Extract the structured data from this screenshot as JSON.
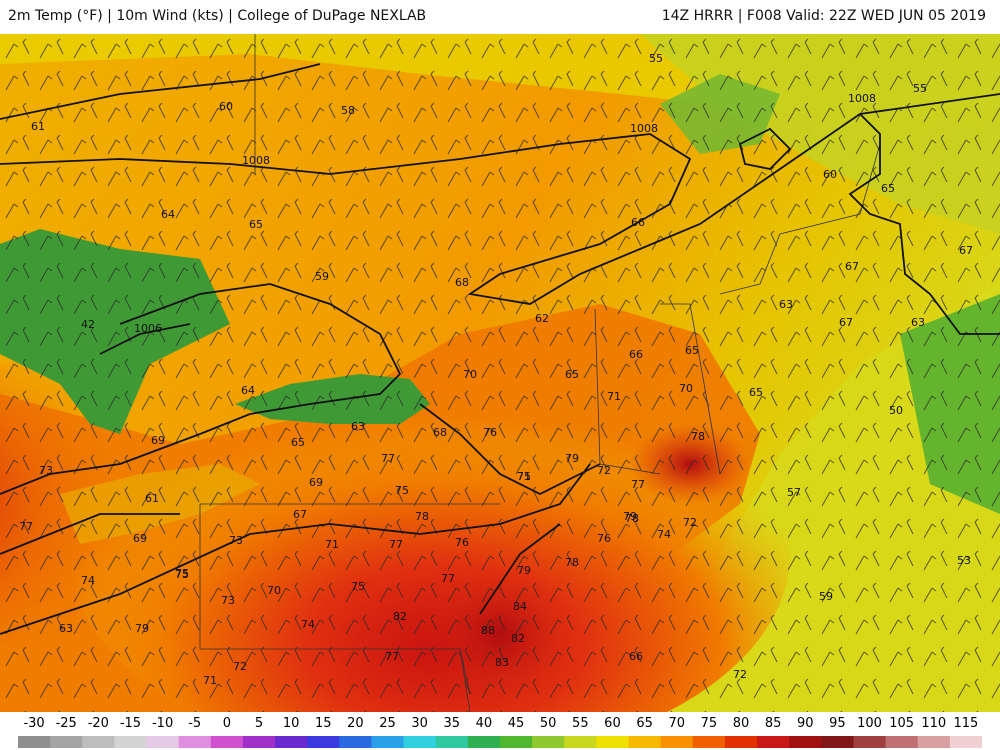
{
  "title": {
    "left": "2m Temp (°F) | 10m Wind (kts) | College of DuPage NEXLAB",
    "right": "14Z HRRR | F008 Valid: 22Z WED JUN 05 2019"
  },
  "map_labels": {
    "temperatures": [
      "61",
      "60",
      "58",
      "55",
      "55",
      "60",
      "65",
      "64",
      "65",
      "59",
      "66",
      "68",
      "67",
      "67",
      "42",
      "63",
      "62",
      "66",
      "65",
      "67",
      "63",
      "64",
      "70",
      "65",
      "71",
      "70",
      "65",
      "50",
      "69",
      "65",
      "63",
      "68",
      "76",
      "79",
      "78",
      "73",
      "72",
      "77",
      "75",
      "76",
      "78",
      "69",
      "75",
      "71",
      "61",
      "69",
      "77",
      "67",
      "78",
      "73",
      "75",
      "71",
      "77",
      "76",
      "77",
      "79",
      "78",
      "74",
      "75",
      "73",
      "70",
      "75",
      "77",
      "79",
      "74",
      "72",
      "57",
      "84",
      "82",
      "74",
      "82",
      "88",
      "77",
      "83",
      "79",
      "63",
      "71",
      "72",
      "66",
      "72",
      "59",
      "53"
    ],
    "isobars": [
      "1008",
      "1008",
      "1008",
      "1006"
    ]
  },
  "legend": {
    "ticks": [
      "-30",
      "-25",
      "-20",
      "-15",
      "-10",
      "-5",
      "0",
      "5",
      "10",
      "15",
      "20",
      "25",
      "30",
      "35",
      "40",
      "45",
      "50",
      "55",
      "60",
      "65",
      "70",
      "75",
      "80",
      "85",
      "90",
      "95",
      "100",
      "105",
      "110",
      "115"
    ],
    "colors": [
      "#8f8f8f",
      "#a5a5a5",
      "#bdbdbd",
      "#d3d3d3",
      "#e6c9e6",
      "#e08fe0",
      "#d050d0",
      "#a030c8",
      "#6a2ad0",
      "#3a3ae0",
      "#2a6ae0",
      "#2aa0e8",
      "#30d0e0",
      "#30c8a0",
      "#30b050",
      "#50b830",
      "#90c830",
      "#c8d820",
      "#f0e000",
      "#f8b800",
      "#f89000",
      "#f06000",
      "#e03000",
      "#c81818",
      "#a01010",
      "#801818",
      "#a04040",
      "#c07070",
      "#d8a0a0",
      "#f0d0d0"
    ]
  },
  "map_colors": {
    "water": "#3a9a3a",
    "cool": "#d8e020",
    "mild": "#f0b000",
    "warm": "#f08000",
    "hot": "#e02810",
    "hottest": "#c01010"
  }
}
